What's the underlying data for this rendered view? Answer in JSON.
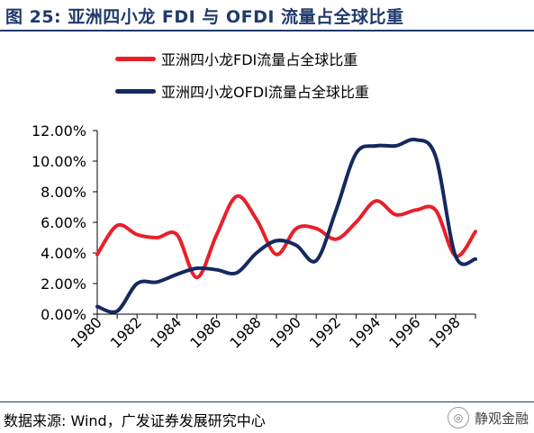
{
  "header": {
    "title": "图 25:  亚洲四小龙 FDI 与 OFDI 流量占全球比重"
  },
  "footer": {
    "source": "数据来源:  Wind，广发证券发展研究中心",
    "watermark": "静观金融"
  },
  "colors": {
    "title": "#1f3a6b",
    "fdi": "#e8202a",
    "ofdi": "#14295f"
  },
  "chart_data": {
    "type": "line",
    "title": "",
    "xlabel": "",
    "ylabel": "",
    "x": [
      1980,
      1981,
      1982,
      1983,
      1984,
      1985,
      1986,
      1987,
      1988,
      1989,
      1990,
      1991,
      1992,
      1993,
      1994,
      1995,
      1996,
      1997,
      1998,
      1999
    ],
    "x_tick_labels": [
      "1980",
      "1982",
      "1984",
      "1986",
      "1988",
      "1990",
      "1992",
      "1994",
      "1996",
      "1998"
    ],
    "y_tick_labels": [
      "0.00%",
      "2.00%",
      "4.00%",
      "6.00%",
      "8.00%",
      "10.00%",
      "12.00%"
    ],
    "ylim": [
      0,
      12
    ],
    "grid": false,
    "legend_position": "top-left",
    "series": [
      {
        "name": "亚洲四小龙FDI流量占全球比重",
        "values": [
          3.9,
          5.8,
          5.2,
          5.0,
          5.2,
          2.4,
          5.2,
          7.7,
          6.2,
          3.9,
          5.6,
          5.6,
          4.9,
          6.0,
          7.4,
          6.5,
          6.8,
          6.8,
          3.8,
          5.4
        ]
      },
      {
        "name": "亚洲四小龙OFDI流量占全球比重",
        "values": [
          0.5,
          0.2,
          2.0,
          2.1,
          2.6,
          3.0,
          2.9,
          2.7,
          4.0,
          4.8,
          4.5,
          3.5,
          6.8,
          10.5,
          11.0,
          11.0,
          11.4,
          10.3,
          3.8,
          3.6
        ]
      }
    ]
  }
}
